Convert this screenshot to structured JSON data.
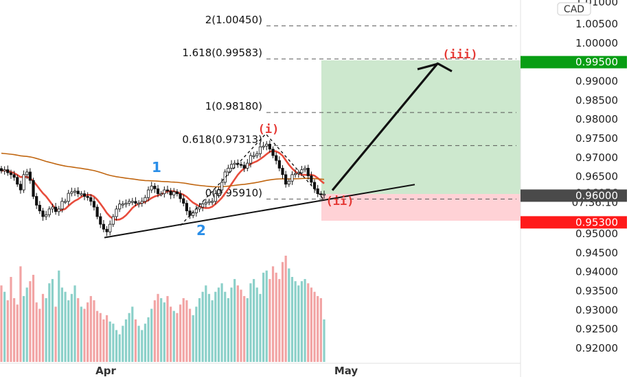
{
  "chart_data": {
    "type": "candlestick",
    "symbol_currency": "CAD",
    "y_axis": {
      "top_cut_label": "1.01000",
      "ticks": [
        "1.00500",
        "1.00000",
        "0.99000",
        "0.98500",
        "0.98000",
        "0.97500",
        "0.97000",
        "0.96500",
        "0.95000",
        "0.94500",
        "0.94000",
        "0.93500",
        "0.93000",
        "0.92500",
        "0.92000"
      ],
      "tick_values": [
        1.005,
        1.0,
        0.99,
        0.985,
        0.98,
        0.975,
        0.97,
        0.965,
        0.95,
        0.945,
        0.94,
        0.935,
        0.93,
        0.925,
        0.92
      ]
    },
    "x_axis": {
      "labels": [
        "Apr",
        "May"
      ]
    },
    "fib_levels": [
      {
        "label": "2(1.00450)",
        "value": 1.0045
      },
      {
        "label": "1.618(0.99583)",
        "value": 0.99583
      },
      {
        "label": "1(0.98180)",
        "value": 0.9818
      },
      {
        "label": "0.618(0.97313)",
        "value": 0.97313
      },
      {
        "label": "0(0.95910)",
        "value": 0.9591
      }
    ],
    "price_tags": [
      {
        "text": "0.99500",
        "value": 0.995,
        "color": "#089e14"
      },
      {
        "text": "0.96000",
        "value": 0.96,
        "color": "#4a4a4a"
      },
      {
        "text": "0.95300",
        "value": 0.953,
        "color": "#ff1a1a"
      }
    ],
    "current_price": {
      "price": "0.96056",
      "countdown": "07:36:10"
    },
    "position": {
      "target": 0.995,
      "entry": 0.96,
      "stop": 0.953
    },
    "wave_labels": {
      "blue": [
        "1",
        "2"
      ],
      "red": [
        "(i)",
        "(ii)",
        "(iii)"
      ]
    },
    "closes": [
      0.9665,
      0.9668,
      0.966,
      0.9655,
      0.9648,
      0.963,
      0.9615,
      0.9655,
      0.9662,
      0.964,
      0.9598,
      0.9575,
      0.956,
      0.9545,
      0.955,
      0.9565,
      0.957,
      0.9558,
      0.9565,
      0.9585,
      0.9585,
      0.9606,
      0.961,
      0.9612,
      0.9605,
      0.9605,
      0.9598,
      0.9595,
      0.9585,
      0.957,
      0.9545,
      0.9525,
      0.9512,
      0.9505,
      0.9525,
      0.9545,
      0.9565,
      0.9578,
      0.9578,
      0.958,
      0.9585,
      0.9585,
      0.958,
      0.958,
      0.9585,
      0.9595,
      0.9615,
      0.9625,
      0.9618,
      0.9605,
      0.9605,
      0.9615,
      0.9612,
      0.9602,
      0.961,
      0.9605,
      0.9592,
      0.958,
      0.956,
      0.9548,
      0.9555,
      0.9565,
      0.957,
      0.9578,
      0.9582,
      0.9585,
      0.9585,
      0.9605,
      0.9615,
      0.9635,
      0.9662,
      0.9672,
      0.9682,
      0.9685,
      0.9682,
      0.968,
      0.9672,
      0.9685,
      0.9705,
      0.9705,
      0.971,
      0.9728,
      0.973,
      0.9735,
      0.9722,
      0.9705,
      0.9692,
      0.9672,
      0.9655,
      0.963,
      0.9638,
      0.9655,
      0.9658,
      0.966,
      0.9668,
      0.9672,
      0.9652,
      0.9635,
      0.9618,
      0.9605,
      0.9602,
      0.9604
    ],
    "volumes": [
      72,
      66,
      58,
      80,
      60,
      54,
      90,
      62,
      70,
      76,
      82,
      56,
      50,
      64,
      60,
      74,
      78,
      52,
      86,
      70,
      66,
      58,
      64,
      72,
      60,
      52,
      50,
      56,
      62,
      58,
      48,
      46,
      40,
      44,
      38,
      36,
      30,
      26,
      34,
      40,
      46,
      52,
      40,
      34,
      30,
      36,
      42,
      50,
      58,
      64,
      60,
      56,
      62,
      52,
      48,
      46,
      54,
      60,
      58,
      50,
      44,
      52,
      60,
      66,
      72,
      64,
      58,
      66,
      70,
      74,
      66,
      60,
      70,
      78,
      72,
      68,
      62,
      60,
      74,
      78,
      70,
      64,
      84,
      86,
      78,
      90,
      84,
      78,
      94,
      100,
      88,
      80,
      76,
      72,
      76,
      78,
      74,
      70,
      66,
      62,
      60,
      40
    ]
  }
}
